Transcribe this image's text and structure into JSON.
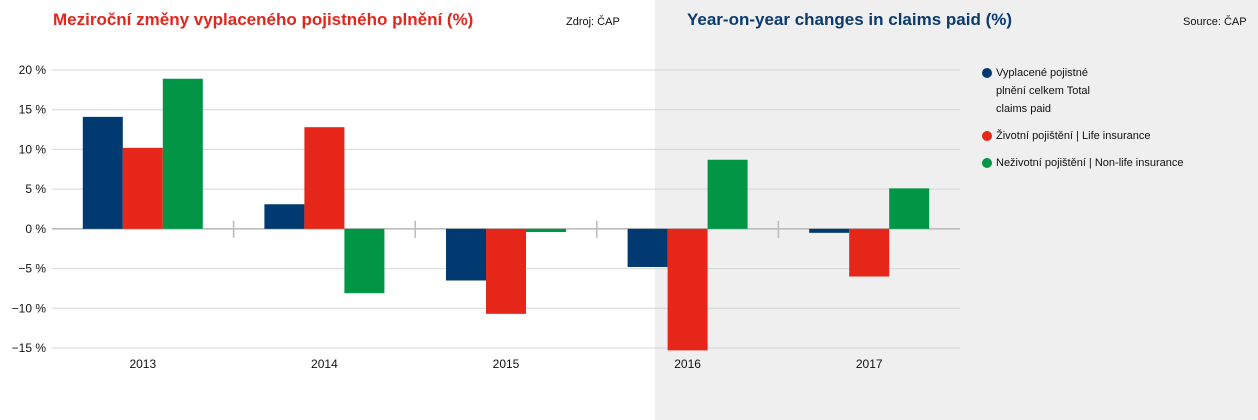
{
  "titles": {
    "cz": "Meziroční změny vyplaceného pojistného plnění (%)",
    "en": "Year-on-year changes in claims paid (%)"
  },
  "sources": {
    "cz": "Zdroj: ČAP",
    "en": "Source: ČAP"
  },
  "colors": {
    "title_cz": "#e2261c",
    "title_en": "#0b3a6e",
    "panel_bg_right": "#efefef",
    "grid": "#d6d6d6",
    "zero_axis": "#bdbdbd"
  },
  "legend": [
    {
      "label": "Vyplacené pojistné plnění celkem Total claims paid",
      "color": "#003a70"
    },
    {
      "label": "Životní pojištění | Life insurance",
      "color": "#e52618"
    },
    {
      "label": "Neživotní pojištění | Non-life insurance",
      "color": "#009646"
    }
  ],
  "chart_data": {
    "type": "bar",
    "categories": [
      "2013",
      "2014",
      "2015",
      "2016",
      "2017"
    ],
    "series": [
      {
        "name": "Vyplacené pojistné plnění celkem Total claims paid",
        "color": "#003a70",
        "values": [
          14.1,
          3.1,
          -6.5,
          -4.8,
          -0.5
        ]
      },
      {
        "name": "Životní pojištění | Life insurance",
        "color": "#e52618",
        "values": [
          10.2,
          12.8,
          -10.7,
          -15.3,
          -6.0
        ]
      },
      {
        "name": "Neživotní pojištění | Non-life insurance",
        "color": "#009646",
        "values": [
          18.9,
          -8.1,
          -0.4,
          8.7,
          5.1
        ]
      }
    ],
    "y_ticks": [
      20,
      15,
      10,
      5,
      0,
      -5,
      -10,
      -15
    ],
    "y_tick_labels": [
      "20 %",
      "15 %",
      "10 %",
      "5 %",
      "0 %",
      "−5 %",
      "−10 %",
      "−15 %"
    ],
    "ylim": [
      -15,
      20
    ],
    "grid": true,
    "legend_position": "right",
    "xlabel": "",
    "ylabel": ""
  }
}
